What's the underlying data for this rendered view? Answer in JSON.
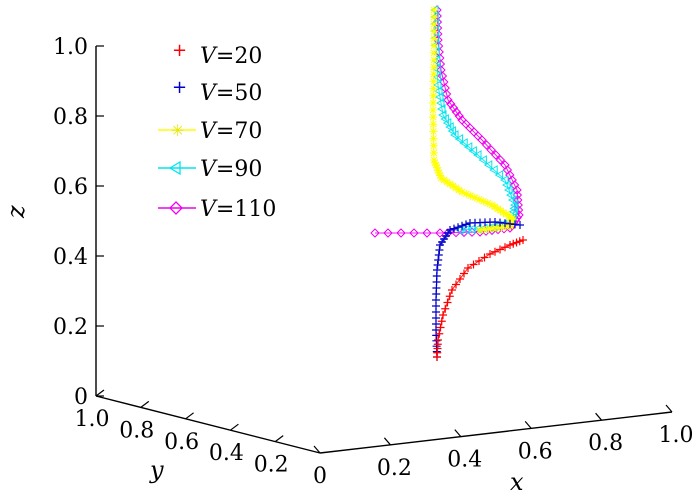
{
  "chart_data": {
    "type": "scatter",
    "projection": "3d",
    "axes": {
      "x": {
        "label": "x",
        "ticks": [
          "0",
          "0.2",
          "0.4",
          "0.6",
          "0.8",
          "1.0"
        ],
        "range": [
          0,
          1
        ]
      },
      "y": {
        "label": "y",
        "ticks": [
          "1.0",
          "0.8",
          "0.6",
          "0.4",
          "0.2"
        ],
        "range": [
          0,
          1
        ]
      },
      "z": {
        "label": "z",
        "ticks": [
          "0",
          "0.2",
          "0.4",
          "0.6",
          "0.8",
          "1.0"
        ],
        "range": [
          0,
          1
        ]
      }
    },
    "grid": false,
    "legend_position": "top-left",
    "series": [
      {
        "name_var": "V",
        "name_eq": "=",
        "name_val": "20",
        "color": "#ff0000",
        "marker": "plus",
        "trajectory": "red: starts bottom near z=0.1, curves up-right, reaches z≈0.45"
      },
      {
        "name_var": "V",
        "name_eq": "=",
        "name_val": "50",
        "color": "#0000c8",
        "marker": "plus",
        "trajectory": "blue: vertical from z=0.1 to z≈0.46, then horizontal to the right"
      },
      {
        "name_var": "V",
        "name_eq": "=",
        "name_val": "70",
        "color": "#ffff00",
        "marker": "star",
        "trajectory": "yellow"
      },
      {
        "name_var": "V",
        "name_eq": "=",
        "name_val": "90",
        "color": "#00e5ee",
        "marker": "triangle",
        "trajectory": "cyan"
      },
      {
        "name_var": "V",
        "name_eq": "=",
        "name_val": "110",
        "color": "#ee00ee",
        "marker": "diamond",
        "trajectory": "magenta"
      }
    ]
  }
}
